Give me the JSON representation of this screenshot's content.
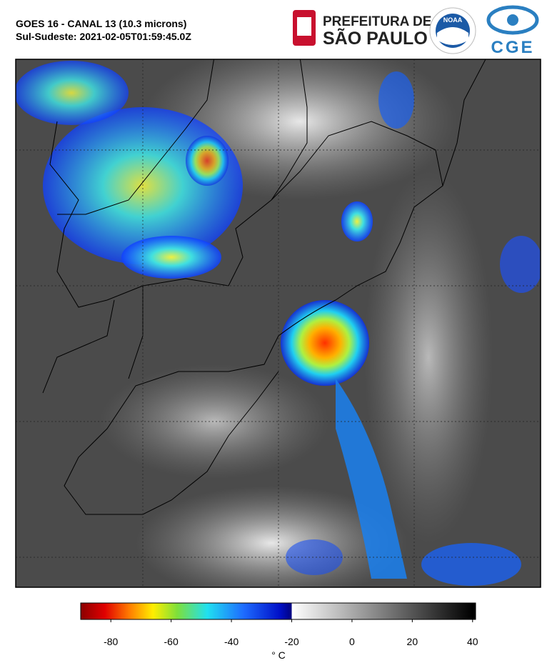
{
  "header": {
    "title": "GOES 16 - CANAL 13 (10.3 microns)",
    "subtitle": "Sul-Sudeste: 2021-02-05T01:59:45.0Z",
    "logos": {
      "city_line1": "PREFEITURA DE",
      "city_line2": "SÃO PAULO",
      "agency": "NOAA",
      "cge": "CGE"
    }
  },
  "colorbar": {
    "lim": [
      -90,
      41
    ],
    "ticks": [
      -80,
      -60,
      -40,
      -20,
      0,
      20,
      40
    ],
    "label": "° C",
    "stops": [
      {
        "value": -90,
        "color": "#8b0000"
      },
      {
        "value": -82,
        "color": "#e00000"
      },
      {
        "value": -74,
        "color": "#ff7a00"
      },
      {
        "value": -66,
        "color": "#ffee00"
      },
      {
        "value": -58,
        "color": "#7ee03a"
      },
      {
        "value": -48,
        "color": "#20e0f0"
      },
      {
        "value": -36,
        "color": "#1e6cff"
      },
      {
        "value": -24,
        "color": "#0010c8"
      },
      {
        "value": -20,
        "color": "#000080"
      },
      {
        "value": -20,
        "color": "#ffffff"
      },
      {
        "value": 40,
        "color": "#000000"
      }
    ]
  }
}
